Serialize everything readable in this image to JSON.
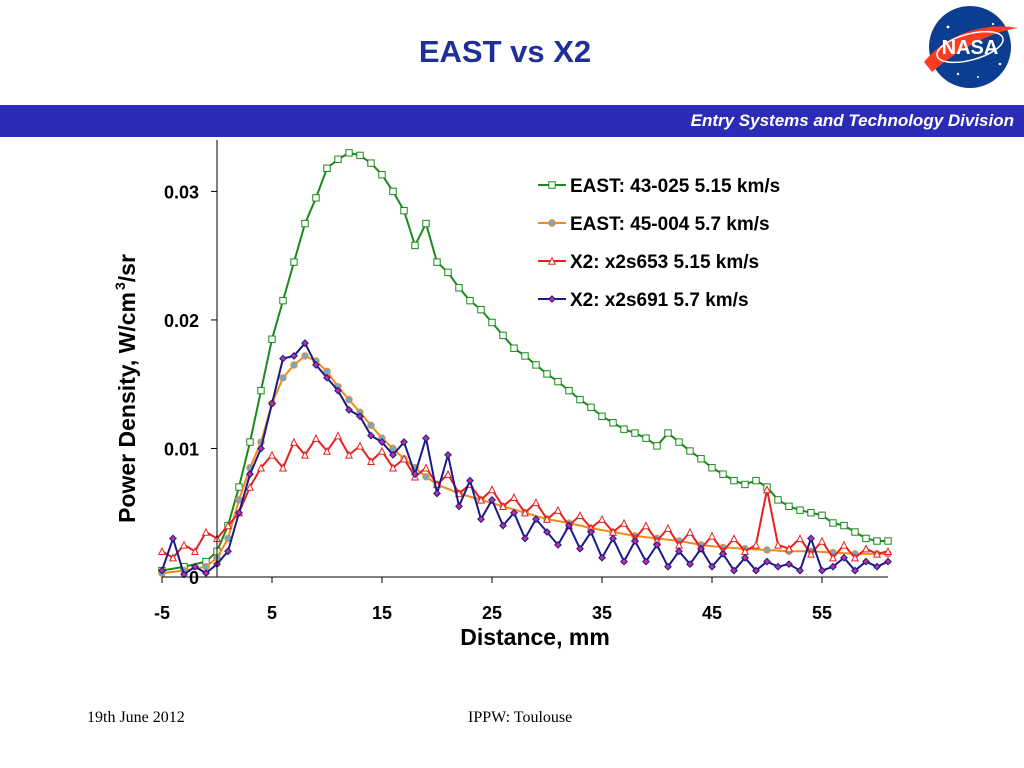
{
  "slide": {
    "title": "EAST vs X2",
    "banner_text": "Entry Systems and Technology Division",
    "footer_date": "19th June 2012",
    "footer_event": "IPPW: Toulouse",
    "logo_text": "NASA"
  },
  "colors": {
    "title": "#1f2f9a",
    "banner_bg": "#2b2bb8",
    "banner_text": "#ffffff",
    "logo_blue": "#0b3d91",
    "logo_red": "#fc3d21"
  },
  "chart_data": {
    "type": "line",
    "xlabel": "Distance, mm",
    "ylabel": "Power Density, W/cm",
    "ylabel_sup": "3",
    "ylabel_suffix": "/sr",
    "xlim": [
      -5,
      61
    ],
    "ylim": [
      0,
      0.034
    ],
    "x_ticks": [
      -5,
      5,
      15,
      25,
      35,
      45,
      55
    ],
    "y_ticks": [
      0,
      0.01,
      0.02,
      0.03
    ],
    "x_tick_labels": [
      "-5",
      "5",
      "15",
      "25",
      "35",
      "45",
      "55"
    ],
    "y_tick_labels": [
      "0",
      "0.01",
      "0.02",
      "0.03"
    ],
    "grid": false,
    "legend_position": "top-right",
    "series": [
      {
        "name": "EAST: 43-025 5.15 km/s",
        "color": "#1a8a1a",
        "marker": "square",
        "x": [
          -5,
          -3,
          -1,
          0,
          1,
          2,
          3,
          4,
          5,
          6,
          7,
          8,
          9,
          10,
          11,
          12,
          13,
          14,
          15,
          16,
          17,
          18,
          19,
          20,
          21,
          22,
          23,
          24,
          25,
          26,
          27,
          28,
          29,
          30,
          31,
          32,
          33,
          34,
          35,
          36,
          37,
          38,
          39,
          40,
          41,
          42,
          43,
          44,
          45,
          46,
          47,
          48,
          49,
          50,
          51,
          52,
          53,
          54,
          55,
          56,
          57,
          58,
          59,
          60,
          61
        ],
        "y": [
          0.0005,
          0.0008,
          0.0012,
          0.002,
          0.004,
          0.007,
          0.0105,
          0.0145,
          0.0185,
          0.0215,
          0.0245,
          0.0275,
          0.0295,
          0.0318,
          0.0325,
          0.033,
          0.0328,
          0.0322,
          0.0313,
          0.03,
          0.0285,
          0.0258,
          0.0275,
          0.0245,
          0.0237,
          0.0225,
          0.0215,
          0.0208,
          0.0198,
          0.0188,
          0.0178,
          0.0172,
          0.0165,
          0.0158,
          0.0152,
          0.0145,
          0.0138,
          0.0132,
          0.0125,
          0.012,
          0.0115,
          0.0112,
          0.0108,
          0.0102,
          0.0112,
          0.0105,
          0.0098,
          0.0092,
          0.0085,
          0.008,
          0.0075,
          0.0072,
          0.0075,
          0.007,
          0.006,
          0.0055,
          0.0052,
          0.005,
          0.0048,
          0.0042,
          0.004,
          0.0035,
          0.003,
          0.0028,
          0.0028
        ]
      },
      {
        "name": "EAST: 45-004 5.7 km/s",
        "color": "#f28a1a",
        "marker": "circle",
        "x": [
          -5,
          -3,
          -1,
          0,
          1,
          2,
          3,
          4,
          5,
          6,
          7,
          8,
          9,
          10,
          11,
          12,
          13,
          14,
          15,
          16,
          17,
          18,
          19,
          20,
          22,
          24,
          26,
          28,
          30,
          32,
          34,
          36,
          38,
          40,
          42,
          44,
          46,
          48,
          50,
          52,
          54,
          56,
          58,
          60,
          61
        ],
        "y": [
          0.0003,
          0.0005,
          0.0008,
          0.0015,
          0.003,
          0.006,
          0.0085,
          0.0105,
          0.0135,
          0.0155,
          0.0165,
          0.0172,
          0.0168,
          0.016,
          0.0148,
          0.0138,
          0.0128,
          0.0118,
          0.0108,
          0.01,
          0.0092,
          0.0085,
          0.0078,
          0.0072,
          0.0065,
          0.006,
          0.0055,
          0.005,
          0.0045,
          0.0042,
          0.0038,
          0.0035,
          0.0032,
          0.003,
          0.0028,
          0.0025,
          0.0023,
          0.0022,
          0.0021,
          0.002,
          0.002,
          0.0019,
          0.0018,
          0.0018,
          0.0018
        ]
      },
      {
        "name": "X2: x2s653 5.15 km/s",
        "color": "#e82020",
        "marker": "triangle",
        "x": [
          -5,
          -4,
          -3,
          -2,
          -1,
          0,
          1,
          2,
          3,
          4,
          5,
          6,
          7,
          8,
          9,
          10,
          11,
          12,
          13,
          14,
          15,
          16,
          17,
          18,
          19,
          20,
          21,
          22,
          23,
          24,
          25,
          26,
          27,
          28,
          29,
          30,
          31,
          32,
          33,
          34,
          35,
          36,
          37,
          38,
          39,
          40,
          41,
          42,
          43,
          44,
          45,
          46,
          47,
          48,
          49,
          50,
          51,
          52,
          53,
          54,
          55,
          56,
          57,
          58,
          59,
          60,
          61
        ],
        "y": [
          0.002,
          0.0015,
          0.0025,
          0.002,
          0.0035,
          0.003,
          0.004,
          0.005,
          0.007,
          0.0085,
          0.0095,
          0.0085,
          0.0105,
          0.0095,
          0.0108,
          0.0098,
          0.011,
          0.0095,
          0.0102,
          0.009,
          0.0098,
          0.0085,
          0.0092,
          0.0078,
          0.0085,
          0.0072,
          0.008,
          0.0065,
          0.0072,
          0.006,
          0.0068,
          0.0055,
          0.0062,
          0.005,
          0.0058,
          0.0045,
          0.0052,
          0.004,
          0.0048,
          0.0038,
          0.0045,
          0.0035,
          0.0042,
          0.003,
          0.004,
          0.0028,
          0.0038,
          0.0025,
          0.0035,
          0.0022,
          0.0032,
          0.002,
          0.003,
          0.002,
          0.0025,
          0.0068,
          0.0025,
          0.0022,
          0.003,
          0.0018,
          0.0028,
          0.0015,
          0.0025,
          0.0015,
          0.0022,
          0.0018,
          0.002
        ]
      },
      {
        "name": "X2: x2s691 5.7 km/s",
        "color": "#1a1a8a",
        "marker": "diamond",
        "x": [
          -5,
          -4,
          -3,
          -2,
          -1,
          0,
          1,
          2,
          3,
          4,
          5,
          6,
          7,
          8,
          9,
          10,
          11,
          12,
          13,
          14,
          15,
          16,
          17,
          18,
          19,
          20,
          21,
          22,
          23,
          24,
          25,
          26,
          27,
          28,
          29,
          30,
          31,
          32,
          33,
          34,
          35,
          36,
          37,
          38,
          39,
          40,
          41,
          42,
          43,
          44,
          45,
          46,
          47,
          48,
          49,
          50,
          51,
          52,
          53,
          54,
          55,
          56,
          57,
          58,
          59,
          60,
          61
        ],
        "y": [
          0.0005,
          0.003,
          0.0002,
          0.0008,
          0.0003,
          0.001,
          0.002,
          0.005,
          0.008,
          0.01,
          0.0135,
          0.017,
          0.0172,
          0.0182,
          0.0165,
          0.0155,
          0.0145,
          0.013,
          0.0125,
          0.011,
          0.0105,
          0.0095,
          0.0105,
          0.008,
          0.0108,
          0.0065,
          0.0095,
          0.0055,
          0.0075,
          0.0045,
          0.006,
          0.004,
          0.005,
          0.003,
          0.0045,
          0.0035,
          0.0025,
          0.004,
          0.0022,
          0.0035,
          0.0015,
          0.003,
          0.0012,
          0.0028,
          0.0012,
          0.0025,
          0.0008,
          0.002,
          0.001,
          0.0022,
          0.0008,
          0.0018,
          0.0005,
          0.0015,
          0.0005,
          0.0012,
          0.0008,
          0.001,
          0.0005,
          0.003,
          0.0005,
          0.0008,
          0.0015,
          0.0005,
          0.0012,
          0.0008,
          0.0012
        ]
      }
    ]
  }
}
